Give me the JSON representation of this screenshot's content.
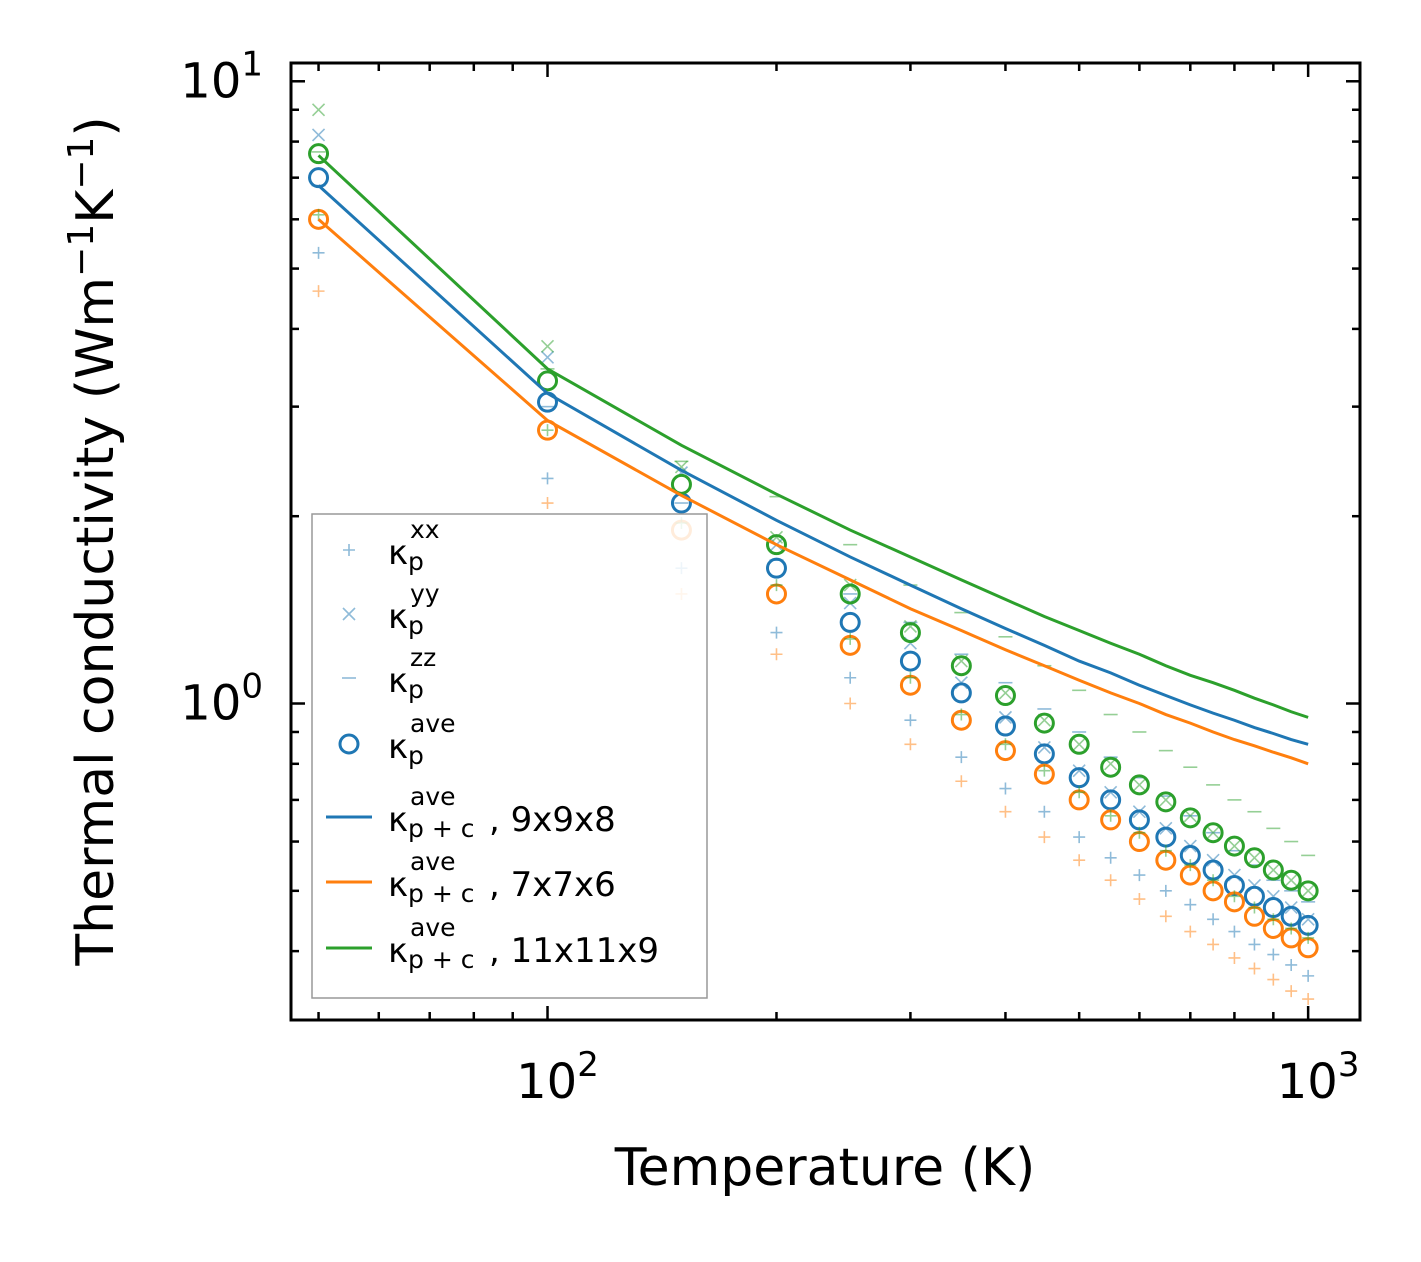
{
  "chart_data": {
    "type": "scatter",
    "title": "",
    "xlabel": "Temperature (K)",
    "ylabel": "Thermal conductivity (Wm",
    "ylabel_parts": [
      "Thermal conductivity (Wm",
      "−1",
      "K",
      "−1",
      ")"
    ],
    "x_scale": "log",
    "y_scale": "log",
    "xlim": [
      46,
      1170
    ],
    "ylim": [
      0.31,
      10.7
    ],
    "x_ticks": [
      {
        "value": 100,
        "base": "10",
        "exp": "2"
      },
      {
        "value": 1000,
        "base": "10",
        "exp": "3"
      }
    ],
    "y_ticks": [
      {
        "value": 1,
        "base": "10",
        "exp": "0"
      },
      {
        "value": 10,
        "base": "10",
        "exp": "1"
      }
    ],
    "x": [
      50,
      100,
      150,
      200,
      250,
      300,
      350,
      400,
      450,
      500,
      550,
      600,
      650,
      700,
      750,
      800,
      850,
      900,
      950,
      1000
    ],
    "colors": {
      "blue": "#1f77b4",
      "orange": "#ff7f0e",
      "green": "#2ca02c"
    },
    "series": [
      {
        "name": "9x9x8 kxx",
        "group": "blue",
        "component": "xx",
        "marker": "plus",
        "values": [
          5.3,
          2.3,
          1.65,
          1.3,
          1.1,
          0.94,
          0.82,
          0.73,
          0.67,
          0.61,
          0.565,
          0.53,
          0.5,
          0.475,
          0.45,
          0.43,
          0.41,
          0.395,
          0.38,
          0.365
        ]
      },
      {
        "name": "9x9x8 kyy",
        "group": "blue",
        "component": "yy",
        "marker": "x",
        "values": [
          8.2,
          3.6,
          2.35,
          1.8,
          1.45,
          1.25,
          1.08,
          0.95,
          0.85,
          0.78,
          0.72,
          0.67,
          0.63,
          0.59,
          0.56,
          0.53,
          0.51,
          0.49,
          0.47,
          0.45
        ]
      },
      {
        "name": "9x9x8 kzz",
        "group": "blue",
        "component": "zz",
        "marker": "dash",
        "values": [
          6.8,
          3.0,
          2.1,
          1.7,
          1.5,
          1.35,
          1.2,
          1.08,
          0.98,
          0.9,
          0.82,
          0.76,
          0.71,
          0.66,
          0.62,
          0.58,
          0.55,
          0.52,
          0.5,
          0.48
        ]
      },
      {
        "name": "7x7x6 kxx",
        "group": "orange",
        "component": "xx",
        "marker": "plus",
        "values": [
          4.6,
          2.1,
          1.5,
          1.2,
          1.0,
          0.86,
          0.75,
          0.67,
          0.61,
          0.56,
          0.52,
          0.485,
          0.455,
          0.43,
          0.41,
          0.39,
          0.375,
          0.36,
          0.345,
          0.335
        ]
      },
      {
        "name": "9x9x8 kave",
        "group": "blue",
        "component": "ave",
        "marker": "circle",
        "values": [
          7.0,
          3.05,
          2.1,
          1.65,
          1.35,
          1.17,
          1.04,
          0.92,
          0.83,
          0.76,
          0.7,
          0.65,
          0.61,
          0.57,
          0.54,
          0.51,
          0.49,
          0.47,
          0.455,
          0.44
        ]
      },
      {
        "name": "7x7x6 kave",
        "group": "orange",
        "component": "ave",
        "marker": "circle",
        "values": [
          6.0,
          2.75,
          1.9,
          1.5,
          1.24,
          1.07,
          0.94,
          0.84,
          0.77,
          0.7,
          0.65,
          0.6,
          0.56,
          0.53,
          0.5,
          0.48,
          0.455,
          0.435,
          0.42,
          0.405
        ]
      },
      {
        "name": "11x11x9 kxx",
        "group": "green",
        "component": "xx",
        "marker": "plus",
        "values": [
          6.1,
          2.75,
          1.95,
          1.55,
          1.27,
          1.1,
          0.96,
          0.86,
          0.78,
          0.72,
          0.66,
          0.62,
          0.58,
          0.55,
          0.52,
          0.49,
          0.47,
          0.45,
          0.435,
          0.42
        ]
      },
      {
        "name": "11x11x9 kyy",
        "group": "green",
        "component": "yy",
        "marker": "x",
        "values": [
          9.0,
          3.75,
          2.4,
          1.85,
          1.55,
          1.33,
          1.17,
          1.04,
          0.94,
          0.86,
          0.8,
          0.74,
          0.7,
          0.66,
          0.62,
          0.59,
          0.565,
          0.54,
          0.52,
          0.5
        ]
      },
      {
        "name": "11x11x9 kzz",
        "group": "green",
        "component": "zz",
        "marker": "dash",
        "values": [
          7.7,
          3.45,
          2.45,
          2.15,
          1.8,
          1.55,
          1.4,
          1.28,
          1.15,
          1.05,
          0.96,
          0.9,
          0.84,
          0.79,
          0.74,
          0.7,
          0.67,
          0.63,
          0.6,
          0.57
        ]
      },
      {
        "name": "11x11x9 kave",
        "group": "green",
        "component": "ave",
        "marker": "circle",
        "values": [
          7.65,
          3.3,
          2.25,
          1.8,
          1.5,
          1.3,
          1.15,
          1.03,
          0.93,
          0.86,
          0.79,
          0.74,
          0.695,
          0.655,
          0.62,
          0.59,
          0.565,
          0.54,
          0.52,
          0.5
        ]
      },
      {
        "name": "9x9x8 kp+c",
        "group": "blue",
        "component": "p+c",
        "marker": "line",
        "values": [
          6.8,
          3.15,
          2.37,
          1.97,
          1.72,
          1.55,
          1.42,
          1.32,
          1.24,
          1.17,
          1.12,
          1.07,
          1.03,
          0.995,
          0.965,
          0.94,
          0.915,
          0.895,
          0.875,
          0.86
        ]
      },
      {
        "name": "7x7x6 kp+c",
        "group": "orange",
        "component": "p+c",
        "marker": "line",
        "values": [
          6.0,
          2.85,
          2.16,
          1.8,
          1.58,
          1.42,
          1.31,
          1.22,
          1.15,
          1.09,
          1.04,
          1.0,
          0.96,
          0.93,
          0.9,
          0.875,
          0.855,
          0.835,
          0.818,
          0.8
        ]
      },
      {
        "name": "11x11x9 kp+c",
        "group": "green",
        "component": "p+c",
        "marker": "line",
        "values": [
          7.6,
          3.45,
          2.6,
          2.17,
          1.9,
          1.72,
          1.58,
          1.47,
          1.38,
          1.31,
          1.25,
          1.2,
          1.15,
          1.11,
          1.08,
          1.05,
          1.02,
          0.995,
          0.97,
          0.95
        ]
      }
    ],
    "legend": {
      "location": "lower-left",
      "entries": [
        {
          "symbol": "κ",
          "sup": "xx",
          "sub": "p",
          "suffix": "",
          "marker": "plus",
          "group": "blue"
        },
        {
          "symbol": "κ",
          "sup": "yy",
          "sub": "p",
          "suffix": "",
          "marker": "x",
          "group": "blue"
        },
        {
          "symbol": "κ",
          "sup": "zz",
          "sub": "p",
          "suffix": "",
          "marker": "dash",
          "group": "blue"
        },
        {
          "symbol": "κ",
          "sup": "ave",
          "sub": "p",
          "suffix": "",
          "marker": "circle",
          "group": "blue"
        },
        {
          "symbol": "κ",
          "sup": "ave",
          "sub": "p + c",
          "suffix": ", 9x9x8",
          "marker": "line",
          "group": "blue"
        },
        {
          "symbol": "κ",
          "sup": "ave",
          "sub": "p + c",
          "suffix": ", 7x7x6",
          "marker": "line",
          "group": "orange"
        },
        {
          "symbol": "κ",
          "sup": "ave",
          "sub": "p + c",
          "suffix": ", 11x11x9",
          "marker": "line",
          "group": "green"
        }
      ]
    }
  }
}
